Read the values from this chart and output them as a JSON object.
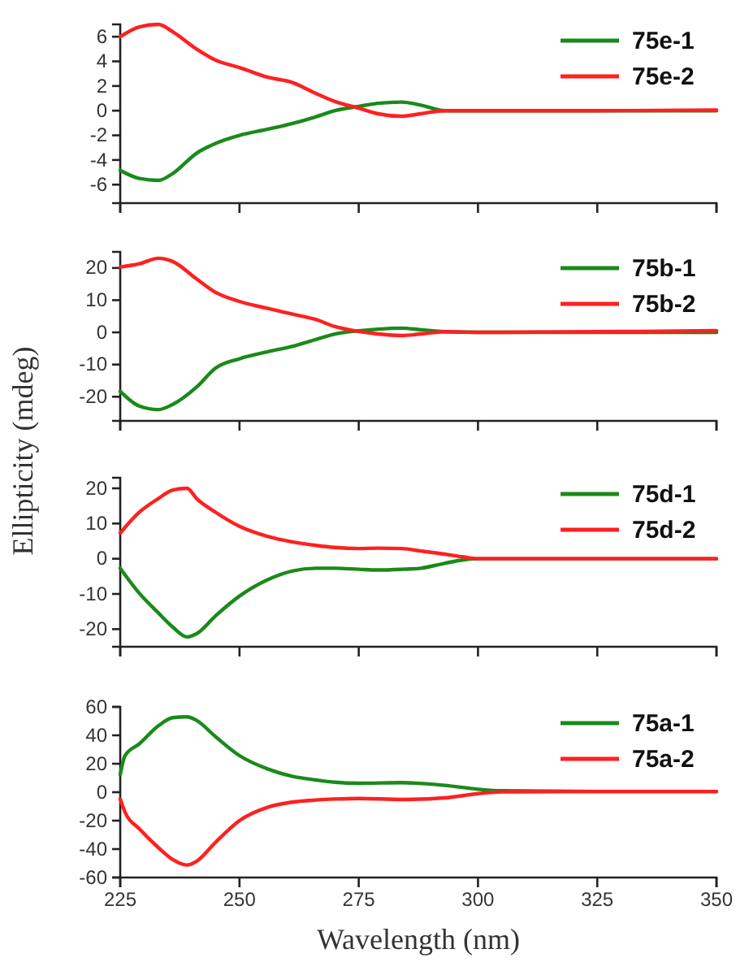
{
  "chart_data": [
    {
      "type": "line",
      "x": [
        225,
        229,
        233,
        236,
        241,
        245,
        250,
        256,
        261,
        266,
        270,
        275,
        279,
        284,
        288,
        293,
        300,
        325,
        350
      ],
      "xlim": [
        225,
        350
      ],
      "xticks": [
        225,
        250,
        275,
        300,
        325,
        350
      ],
      "ylim": [
        -7.5,
        7
      ],
      "yticks": [
        -6,
        -4,
        -2,
        0,
        2,
        4,
        6
      ],
      "tick_labels": "y",
      "legend": "top right",
      "series": [
        {
          "name": "75e-1",
          "color": "#1a8a1a",
          "values": [
            -4.85,
            -5.5,
            -5.65,
            -5.1,
            -3.45,
            -2.65,
            -2.0,
            -1.5,
            -1.05,
            -0.5,
            0,
            0.35,
            0.6,
            0.7,
            0.45,
            0,
            0,
            0,
            0
          ]
        },
        {
          "name": "75e-2",
          "color": "#ff2020",
          "values": [
            6.0,
            6.8,
            7.0,
            6.4,
            5.0,
            4.1,
            3.5,
            2.7,
            2.3,
            1.4,
            0.75,
            0.2,
            -0.25,
            -0.45,
            -0.25,
            0,
            0,
            0,
            0.05
          ]
        }
      ]
    },
    {
      "type": "line",
      "x": [
        225,
        229,
        233,
        236,
        241,
        245,
        250,
        256,
        261,
        266,
        270,
        275,
        279,
        284,
        288,
        293,
        300,
        325,
        350
      ],
      "xlim": [
        225,
        350
      ],
      "xticks": [
        225,
        250,
        275,
        300,
        325,
        350
      ],
      "ylim": [
        -27.5,
        25
      ],
      "yticks": [
        -20,
        -10,
        0,
        10,
        20
      ],
      "tick_labels": "y",
      "legend": "top right",
      "ylabel": "Ellipticity (mdeg)",
      "series": [
        {
          "name": "75b-1",
          "color": "#1a8a1a",
          "values": [
            -18.3,
            -22.9,
            -24,
            -22.4,
            -17,
            -11.1,
            -8.2,
            -6,
            -4.4,
            -2.2,
            -0.5,
            0.5,
            1,
            1.3,
            0.8,
            0.2,
            0,
            0,
            0
          ]
        },
        {
          "name": "75b-2",
          "color": "#ff2020",
          "values": [
            20.3,
            21.3,
            23,
            22,
            16.6,
            12.4,
            9.6,
            7.4,
            5.7,
            4,
            1.8,
            0.3,
            -0.5,
            -1,
            -0.5,
            0.2,
            0,
            0.2,
            0.5
          ]
        }
      ]
    },
    {
      "type": "line",
      "x": [
        225,
        229,
        233,
        236,
        239,
        241,
        245,
        250,
        256,
        261,
        266,
        270,
        275,
        279,
        284,
        288,
        293,
        297,
        300,
        325,
        350
      ],
      "xlim": [
        225,
        350
      ],
      "xticks": [
        225,
        250,
        275,
        300,
        325,
        350
      ],
      "ylim": [
        -25,
        23
      ],
      "yticks": [
        -20,
        -10,
        0,
        10,
        20
      ],
      "tick_labels": "y",
      "legend": "top right",
      "series": [
        {
          "name": "75d-1",
          "color": "#1a8a1a",
          "values": [
            -2.7,
            -9.8,
            -15.4,
            -19.4,
            -22.2,
            -21.3,
            -16.2,
            -10.6,
            -5.9,
            -3.5,
            -2.7,
            -2.7,
            -3,
            -3.2,
            -3,
            -2.7,
            -1.3,
            -0.3,
            0,
            0,
            0
          ]
        },
        {
          "name": "75d-2",
          "color": "#ff2020",
          "values": [
            7.3,
            13.2,
            17.1,
            19.5,
            20,
            17.1,
            13.2,
            9.2,
            6.3,
            4.8,
            3.8,
            3.2,
            2.9,
            3,
            2.9,
            2.2,
            1.3,
            0.5,
            0,
            0,
            0
          ]
        }
      ]
    },
    {
      "type": "line",
      "x": [
        225,
        226,
        229,
        233,
        236,
        239,
        241,
        245,
        250,
        256,
        261,
        266,
        270,
        275,
        284,
        293,
        300,
        305,
        325,
        350
      ],
      "xlim": [
        225,
        350
      ],
      "xticks": [
        225,
        250,
        275,
        300,
        325,
        350
      ],
      "ylim": [
        -60,
        60
      ],
      "yticks": [
        -60,
        -40,
        -20,
        0,
        20,
        40,
        60
      ],
      "xlabel": "Wavelength (nm)",
      "legend": "top right",
      "series": [
        {
          "name": "75a-1",
          "color": "#1a8a1a",
          "values": [
            12.4,
            25.7,
            34,
            46.7,
            52.4,
            53,
            50.5,
            39,
            25.7,
            16.2,
            11.2,
            8.6,
            7,
            6.3,
            6.7,
            4.8,
            2.1,
            1,
            0.5,
            0.5
          ]
        },
        {
          "name": "75a-2",
          "color": "#ff2020",
          "values": [
            -4.8,
            -14,
            -25.7,
            -39,
            -47.4,
            -51.2,
            -48.6,
            -35.2,
            -20,
            -10.5,
            -7,
            -5.5,
            -4.8,
            -4.4,
            -5.1,
            -4,
            -1,
            0.2,
            0.5,
            0.5
          ]
        }
      ]
    }
  ]
}
